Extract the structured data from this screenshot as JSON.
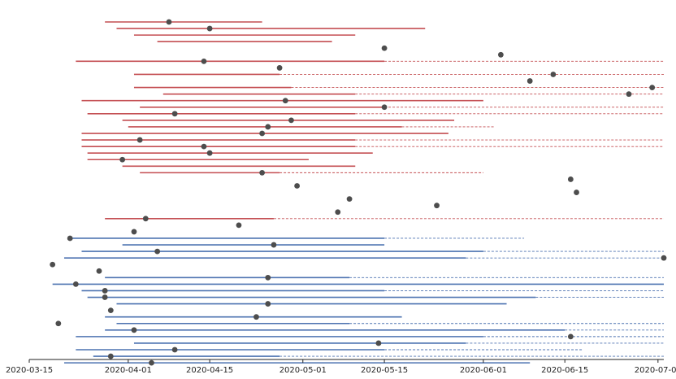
{
  "colors": {
    "red": "#c44e52",
    "blue": "#4c72b0",
    "dot": "#4d4d4d",
    "axis": "#222222"
  },
  "chart_data": {
    "type": "timeline",
    "x_axis": {
      "type": "date",
      "range": [
        "2020-03-15",
        "2020-07-02"
      ],
      "ticks": [
        "2020-03-15",
        "2020-04-01",
        "2020-04-15",
        "2020-05-01",
        "2020-05-15",
        "2020-06-01",
        "2020-06-15",
        "2020-07-01"
      ]
    },
    "y_axis_visible": false,
    "grid": false,
    "legend": "none",
    "rows": [
      {
        "group": "red",
        "start": "2020-03-28",
        "solid_end": "2020-04-24",
        "dashed_end": null,
        "point": "2020-04-08"
      },
      {
        "group": "red",
        "start": "2020-03-30",
        "solid_end": "2020-05-22",
        "dashed_end": null,
        "point": "2020-04-15"
      },
      {
        "group": "red",
        "start": "2020-04-02",
        "solid_end": "2020-05-10",
        "dashed_end": null,
        "point": null
      },
      {
        "group": "red",
        "start": "2020-04-06",
        "solid_end": "2020-05-06",
        "dashed_end": null,
        "point": null
      },
      {
        "group": "red",
        "start": null,
        "solid_end": null,
        "dashed_end": null,
        "point": "2020-05-15"
      },
      {
        "group": "red",
        "start": null,
        "solid_end": null,
        "dashed_end": null,
        "point": "2020-06-04"
      },
      {
        "group": "red",
        "start": "2020-03-23",
        "solid_end": "2020-05-15",
        "dashed_end": "2020-07-02",
        "point": "2020-04-14"
      },
      {
        "group": "red",
        "start": null,
        "solid_end": null,
        "dashed_end": null,
        "point": "2020-04-27"
      },
      {
        "group": "red",
        "start": "2020-04-02",
        "solid_end": "2020-04-27",
        "dashed_end": "2020-07-02",
        "point": "2020-06-13"
      },
      {
        "group": "red",
        "start": null,
        "solid_end": null,
        "dashed_end": null,
        "point": "2020-06-09"
      },
      {
        "group": "red",
        "start": "2020-04-02",
        "solid_end": "2020-04-29",
        "dashed_end": "2020-07-02",
        "point": "2020-06-30"
      },
      {
        "group": "red",
        "start": "2020-04-07",
        "solid_end": "2020-05-10",
        "dashed_end": "2020-07-02",
        "point": "2020-06-26"
      },
      {
        "group": "red",
        "start": "2020-03-24",
        "solid_end": "2020-06-01",
        "dashed_end": null,
        "point": "2020-04-28"
      },
      {
        "group": "red",
        "start": "2020-04-03",
        "solid_end": "2020-05-15",
        "dashed_end": "2020-07-02",
        "point": "2020-05-15"
      },
      {
        "group": "red",
        "start": "2020-03-25",
        "solid_end": "2020-05-10",
        "dashed_end": "2020-07-02",
        "point": "2020-04-09"
      },
      {
        "group": "red",
        "start": "2020-03-31",
        "solid_end": "2020-05-27",
        "dashed_end": null,
        "point": "2020-04-29"
      },
      {
        "group": "red",
        "start": "2020-04-01",
        "solid_end": "2020-05-18",
        "dashed_end": "2020-06-03",
        "point": "2020-04-25"
      },
      {
        "group": "red",
        "start": "2020-03-24",
        "solid_end": "2020-05-26",
        "dashed_end": null,
        "point": "2020-04-24"
      },
      {
        "group": "red",
        "start": "2020-03-24",
        "solid_end": "2020-05-10",
        "dashed_end": "2020-07-02",
        "point": "2020-04-03"
      },
      {
        "group": "red",
        "start": "2020-03-24",
        "solid_end": "2020-05-10",
        "dashed_end": "2020-07-02",
        "point": "2020-04-14"
      },
      {
        "group": "red",
        "start": "2020-03-25",
        "solid_end": "2020-05-13",
        "dashed_end": null,
        "point": "2020-04-15"
      },
      {
        "group": "red",
        "start": "2020-03-25",
        "solid_end": "2020-05-02",
        "dashed_end": null,
        "point": "2020-03-31"
      },
      {
        "group": "red",
        "start": "2020-03-31",
        "solid_end": "2020-05-10",
        "dashed_end": null,
        "point": null
      },
      {
        "group": "red",
        "start": "2020-04-03",
        "solid_end": "2020-04-27",
        "dashed_end": "2020-06-01",
        "point": "2020-04-24"
      },
      {
        "group": "red",
        "start": null,
        "solid_end": null,
        "dashed_end": null,
        "point": "2020-06-16"
      },
      {
        "group": "red",
        "start": null,
        "solid_end": null,
        "dashed_end": null,
        "point": "2020-04-30"
      },
      {
        "group": "red",
        "start": null,
        "solid_end": null,
        "dashed_end": null,
        "point": "2020-06-17"
      },
      {
        "group": "red",
        "start": null,
        "solid_end": null,
        "dashed_end": null,
        "point": "2020-05-09"
      },
      {
        "group": "red",
        "start": null,
        "solid_end": null,
        "dashed_end": null,
        "point": "2020-05-24"
      },
      {
        "group": "red",
        "start": null,
        "solid_end": null,
        "dashed_end": null,
        "point": "2020-05-07"
      },
      {
        "group": "red",
        "start": "2020-03-28",
        "solid_end": "2020-04-26",
        "dashed_end": "2020-07-02",
        "point": "2020-04-04"
      },
      {
        "group": "red",
        "start": null,
        "solid_end": null,
        "dashed_end": null,
        "point": "2020-04-20"
      },
      {
        "group": "red",
        "start": null,
        "solid_end": null,
        "dashed_end": null,
        "point": "2020-04-02"
      },
      {
        "group": "blue",
        "start": "2020-03-22",
        "solid_end": "2020-05-15",
        "dashed_end": "2020-06-08",
        "point": "2020-03-22"
      },
      {
        "group": "blue",
        "start": "2020-03-31",
        "solid_end": "2020-05-15",
        "dashed_end": null,
        "point": "2020-04-26"
      },
      {
        "group": "blue",
        "start": "2020-03-24",
        "solid_end": "2020-06-01",
        "dashed_end": "2020-07-02",
        "point": "2020-04-06"
      },
      {
        "group": "blue",
        "start": "2020-03-21",
        "solid_end": "2020-05-29",
        "dashed_end": "2020-07-02",
        "point": "2020-07-02"
      },
      {
        "group": "blue",
        "start": null,
        "solid_end": null,
        "dashed_end": null,
        "point": "2020-03-19"
      },
      {
        "group": "blue",
        "start": null,
        "solid_end": null,
        "dashed_end": null,
        "point": "2020-03-27"
      },
      {
        "group": "blue",
        "start": "2020-03-28",
        "solid_end": "2020-05-09",
        "dashed_end": "2020-07-02",
        "point": "2020-04-25"
      },
      {
        "group": "blue",
        "start": "2020-03-19",
        "solid_end": "2020-07-02",
        "dashed_end": null,
        "point": "2020-03-23"
      },
      {
        "group": "blue",
        "start": "2020-03-24",
        "solid_end": "2020-05-15",
        "dashed_end": "2020-07-02",
        "point": "2020-03-28"
      },
      {
        "group": "blue",
        "start": "2020-03-25",
        "solid_end": "2020-06-10",
        "dashed_end": "2020-07-02",
        "point": "2020-03-28"
      },
      {
        "group": "blue",
        "start": "2020-03-30",
        "solid_end": "2020-06-05",
        "dashed_end": null,
        "point": "2020-04-25"
      },
      {
        "group": "blue",
        "start": null,
        "solid_end": null,
        "dashed_end": null,
        "point": "2020-03-29"
      },
      {
        "group": "blue",
        "start": "2020-03-28",
        "solid_end": "2020-05-18",
        "dashed_end": null,
        "point": "2020-04-23"
      },
      {
        "group": "blue",
        "start": "2020-03-30",
        "solid_end": "2020-05-09",
        "dashed_end": "2020-07-02",
        "point": "2020-03-20"
      },
      {
        "group": "blue",
        "start": "2020-03-28",
        "solid_end": "2020-06-15",
        "dashed_end": "2020-07-02",
        "point": "2020-04-02"
      },
      {
        "group": "blue",
        "start": "2020-03-23",
        "solid_end": "2020-06-01",
        "dashed_end": "2020-07-02",
        "point": "2020-06-16"
      },
      {
        "group": "blue",
        "start": "2020-04-02",
        "solid_end": "2020-05-29",
        "dashed_end": "2020-07-02",
        "point": "2020-05-14"
      },
      {
        "group": "blue",
        "start": "2020-03-23",
        "solid_end": "2020-05-15",
        "dashed_end": "2020-06-18",
        "point": "2020-04-09"
      },
      {
        "group": "blue",
        "start": "2020-03-26",
        "solid_end": "2020-04-27",
        "dashed_end": "2020-07-02",
        "point": "2020-03-29"
      },
      {
        "group": "blue",
        "start": "2020-03-21",
        "solid_end": "2020-06-09",
        "dashed_end": null,
        "point": "2020-04-05"
      }
    ]
  }
}
